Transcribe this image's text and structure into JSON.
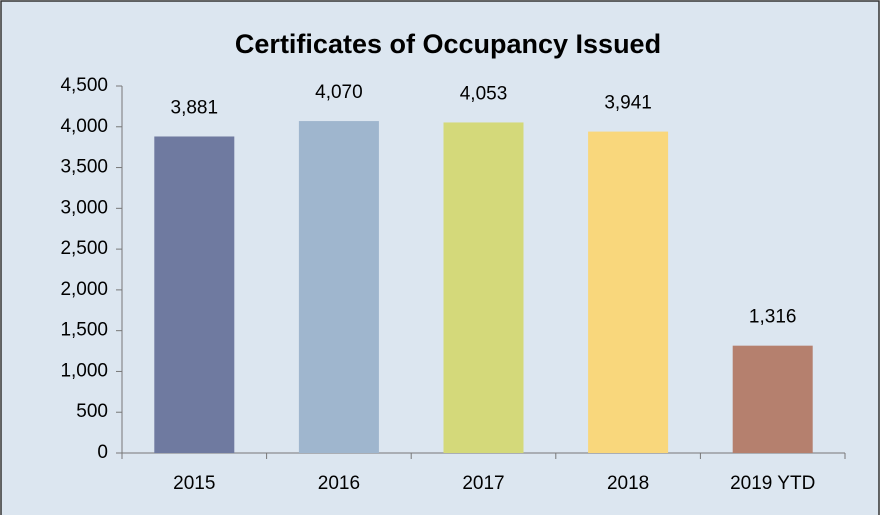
{
  "chart_data": {
    "type": "bar",
    "title": "Certificates of Occupancy Issued",
    "categories": [
      "2015",
      "2016",
      "2017",
      "2018",
      "2019 YTD"
    ],
    "values": [
      3881,
      4070,
      4053,
      3941,
      1316
    ],
    "value_labels": [
      "3,881",
      "4,070",
      "4,053",
      "3,941",
      "1,316"
    ],
    "colors": [
      "#6f7aa0",
      "#9fb6ce",
      "#d4d97a",
      "#f9d77c",
      "#b5806e"
    ],
    "ylim": [
      0,
      4500
    ],
    "yticks": [
      0,
      500,
      {
        "value": 1000,
        "label": "1,000"
      },
      {
        "value": 1500,
        "label": "1,500"
      },
      {
        "value": 2000,
        "label": "2,000"
      },
      {
        "value": 2500,
        "label": "2,500"
      },
      {
        "value": 3000,
        "label": "3,000"
      },
      {
        "value": 3500,
        "label": "3,500"
      },
      {
        "value": 4000,
        "label": "4,000"
      },
      {
        "value": 4500,
        "label": "4,500"
      }
    ]
  }
}
